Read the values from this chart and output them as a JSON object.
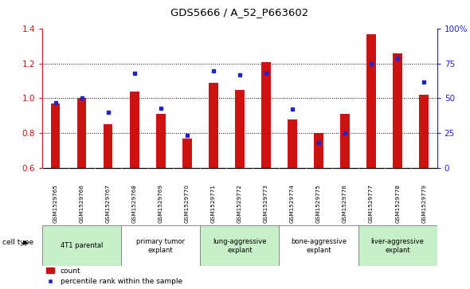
{
  "title": "GDS5666 / A_52_P663602",
  "samples": [
    "GSM1529765",
    "GSM1529766",
    "GSM1529767",
    "GSM1529768",
    "GSM1529769",
    "GSM1529770",
    "GSM1529771",
    "GSM1529772",
    "GSM1529773",
    "GSM1529774",
    "GSM1529775",
    "GSM1529776",
    "GSM1529777",
    "GSM1529778",
    "GSM1529779"
  ],
  "counts": [
    0.97,
    1.0,
    0.85,
    1.04,
    0.91,
    0.77,
    1.09,
    1.05,
    1.21,
    0.88,
    0.8,
    0.91,
    1.37,
    1.26,
    1.02
  ],
  "percentile_ranks": [
    47,
    50,
    40,
    68,
    43,
    23,
    70,
    67,
    68,
    42,
    18,
    25,
    75,
    79,
    62
  ],
  "ylim_left": [
    0.6,
    1.4
  ],
  "ylim_right": [
    0,
    100
  ],
  "yticks_left": [
    0.6,
    0.8,
    1.0,
    1.2,
    1.4
  ],
  "yticks_right": [
    0,
    25,
    50,
    75,
    100
  ],
  "ytick_labels_right": [
    "0",
    "25",
    "50",
    "75",
    "100%"
  ],
  "cell_types": [
    {
      "label": "4T1 parental",
      "start": 0,
      "end": 3,
      "color": "#c8f0c8"
    },
    {
      "label": "primary tumor\nexplant",
      "start": 3,
      "end": 6,
      "color": "#ffffff"
    },
    {
      "label": "lung-aggressive\nexplant",
      "start": 6,
      "end": 9,
      "color": "#c8f0c8"
    },
    {
      "label": "bone-aggressive\nexplant",
      "start": 9,
      "end": 12,
      "color": "#ffffff"
    },
    {
      "label": "liver-aggressive\nexplant",
      "start": 12,
      "end": 15,
      "color": "#c8f0c8"
    }
  ],
  "bar_color": "#cc1111",
  "dot_color": "#2222cc",
  "bar_width": 0.35,
  "cell_type_label": "cell type",
  "legend_count_label": "count",
  "legend_percentile_label": "percentile rank within the sample",
  "sample_bg_color": "#cccccc",
  "plot_bg_color": "#ffffff",
  "fig_bg_color": "#ffffff"
}
